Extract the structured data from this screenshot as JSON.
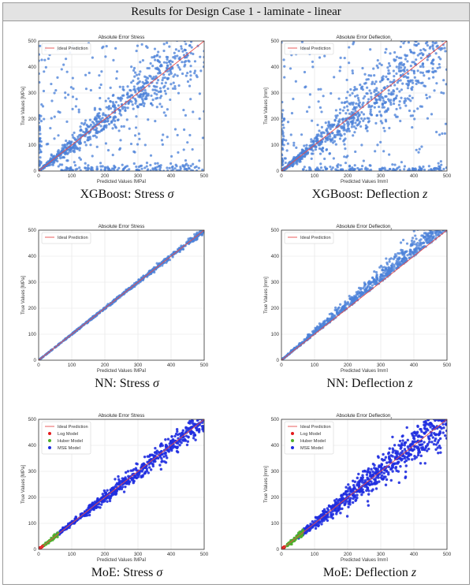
{
  "header": {
    "title": "Results for Design Case 1 - laminate - linear"
  },
  "colors": {
    "points": "#4c82d9",
    "ideal_line": "#e64b4b",
    "log": "#e41a1c",
    "huber": "#4daf2a",
    "mse": "#1f2ee0",
    "grid": "#e3e3e3",
    "axes": "#333333"
  },
  "panels": [
    {
      "caption_prefix": "XGBoost: ",
      "caption_name": "Stress ",
      "caption_symbol": "σ"
    },
    {
      "caption_prefix": "XGBoost: ",
      "caption_name": "Deflection ",
      "caption_symbol": "z"
    },
    {
      "caption_prefix": "NN: ",
      "caption_name": "Stress ",
      "caption_symbol": "σ"
    },
    {
      "caption_prefix": "NN: ",
      "caption_name": "Deflection ",
      "caption_symbol": "z"
    },
    {
      "caption_prefix": "MoE: ",
      "caption_name": "Stress ",
      "caption_symbol": "σ"
    },
    {
      "caption_prefix": "MoE: ",
      "caption_name": "Deflection ",
      "caption_symbol": "z"
    }
  ],
  "chart_data": [
    {
      "type": "scatter",
      "title": "Absolute Error Stress",
      "xlabel": "Predicted Values [MPa]",
      "ylabel": "True Values [MPa]",
      "xlim": [
        0,
        500
      ],
      "ylim": [
        0,
        500
      ],
      "ticks": [
        0,
        100,
        200,
        300,
        400,
        500
      ],
      "grid": true,
      "legend_position": "top-left",
      "legend": [
        "Ideal Prediction"
      ],
      "ideal_line": {
        "name": "Ideal Prediction",
        "from": [
          0,
          0
        ],
        "to": [
          500,
          500
        ]
      },
      "series": [
        {
          "color_key": "points",
          "spread": 0.16,
          "outliers": 0.22,
          "floor_band": true,
          "x_range": [
            0,
            500
          ],
          "count": 900
        }
      ]
    },
    {
      "type": "scatter",
      "title": "Absolute Error Deflection_z",
      "xlabel": "Predicted Values [mm]",
      "ylabel": "True Values [mm]",
      "xlim": [
        0,
        500
      ],
      "ylim": [
        0,
        500
      ],
      "ticks": [
        0,
        100,
        200,
        300,
        400,
        500
      ],
      "grid": true,
      "legend_position": "top-left",
      "legend": [
        "Ideal Prediction"
      ],
      "ideal_line": {
        "name": "Ideal Prediction",
        "from": [
          0,
          0
        ],
        "to": [
          500,
          500
        ]
      },
      "series": [
        {
          "color_key": "points",
          "spread": 0.2,
          "outliers": 0.18,
          "floor_band": true,
          "x_range": [
            0,
            500
          ],
          "count": 950
        }
      ]
    },
    {
      "type": "scatter",
      "title": "Absolute Error Stress",
      "xlabel": "Predicted Values [MPa]",
      "ylabel": "True Values [MPa]",
      "xlim": [
        0,
        500
      ],
      "ylim": [
        0,
        500
      ],
      "ticks": [
        0,
        100,
        200,
        300,
        400,
        500
      ],
      "grid": true,
      "legend_position": "top-left",
      "legend": [
        "Ideal Prediction"
      ],
      "ideal_line": {
        "name": "Ideal Prediction",
        "from": [
          0,
          0
        ],
        "to": [
          500,
          500
        ]
      },
      "series": [
        {
          "color_key": "points",
          "spread": 0.012,
          "outliers": 0,
          "floor_band": false,
          "x_range": [
            0,
            500
          ],
          "count": 600
        }
      ]
    },
    {
      "type": "scatter",
      "title": "Absolute Error Deflection_z",
      "xlabel": "Predicted Values [mm]",
      "ylabel": "True Values [mm]",
      "xlim": [
        0,
        500
      ],
      "ylim": [
        0,
        500
      ],
      "ticks": [
        0,
        100,
        200,
        300,
        400,
        500
      ],
      "grid": true,
      "legend_position": "top-left",
      "legend": [
        "Ideal Prediction"
      ],
      "ideal_line": {
        "name": "Ideal Prediction",
        "from": [
          0,
          0
        ],
        "to": [
          500,
          500
        ]
      },
      "series": [
        {
          "color_key": "points",
          "spread": 0.1,
          "upper_only": true,
          "outliers": 0,
          "floor_band": false,
          "x_range": [
            0,
            500
          ],
          "count": 750
        }
      ]
    },
    {
      "type": "scatter",
      "title": "Absolute Error Stress",
      "xlabel": "Predicted Values [MPa]",
      "ylabel": "True Values [MPa]",
      "xlim": [
        0,
        500
      ],
      "ylim": [
        0,
        500
      ],
      "ticks": [
        0,
        100,
        200,
        300,
        400,
        500
      ],
      "grid": true,
      "legend_position": "top-left",
      "legend": [
        "Ideal Prediction",
        "Log Model",
        "Huber Model",
        "MSE Model"
      ],
      "ideal_line": {
        "name": "Ideal Prediction",
        "from": [
          0,
          0
        ],
        "to": [
          500,
          500
        ]
      },
      "series": [
        {
          "name": "MSE Model",
          "color_key": "mse",
          "spread": 0.05,
          "outliers": 0,
          "floor_band": false,
          "x_range": [
            45,
            500
          ],
          "count": 650
        },
        {
          "name": "Huber Model",
          "color_key": "huber",
          "spread": 0.08,
          "outliers": 0,
          "floor_band": false,
          "x_range": [
            10,
            60
          ],
          "count": 60
        },
        {
          "name": "Log Model",
          "color_key": "log",
          "spread": 0.1,
          "outliers": 0,
          "floor_band": false,
          "x_range": [
            0,
            12
          ],
          "count": 20
        }
      ]
    },
    {
      "type": "scatter",
      "title": "Absolute Error Deflection_z",
      "xlabel": "Predicted Values [mm]",
      "ylabel": "True Values [mm]",
      "xlim": [
        0,
        500
      ],
      "ylim": [
        0,
        500
      ],
      "ticks": [
        0,
        100,
        200,
        300,
        400,
        500
      ],
      "grid": true,
      "legend_position": "top-left",
      "legend": [
        "Ideal Prediction",
        "Log Model",
        "Huber Model",
        "MSE Model"
      ],
      "ideal_line": {
        "name": "Ideal Prediction",
        "from": [
          0,
          0
        ],
        "to": [
          500,
          500
        ]
      },
      "series": [
        {
          "name": "MSE Model",
          "color_key": "mse",
          "spread": 0.1,
          "outliers": 0,
          "floor_band": false,
          "x_range": [
            50,
            500
          ],
          "count": 750
        },
        {
          "name": "Huber Model",
          "color_key": "huber",
          "spread": 0.15,
          "outliers": 0,
          "floor_band": false,
          "x_range": [
            8,
            65
          ],
          "count": 70
        },
        {
          "name": "Log Model",
          "color_key": "log",
          "spread": 0.1,
          "outliers": 0,
          "floor_band": false,
          "x_range": [
            0,
            10
          ],
          "count": 20
        }
      ]
    }
  ]
}
